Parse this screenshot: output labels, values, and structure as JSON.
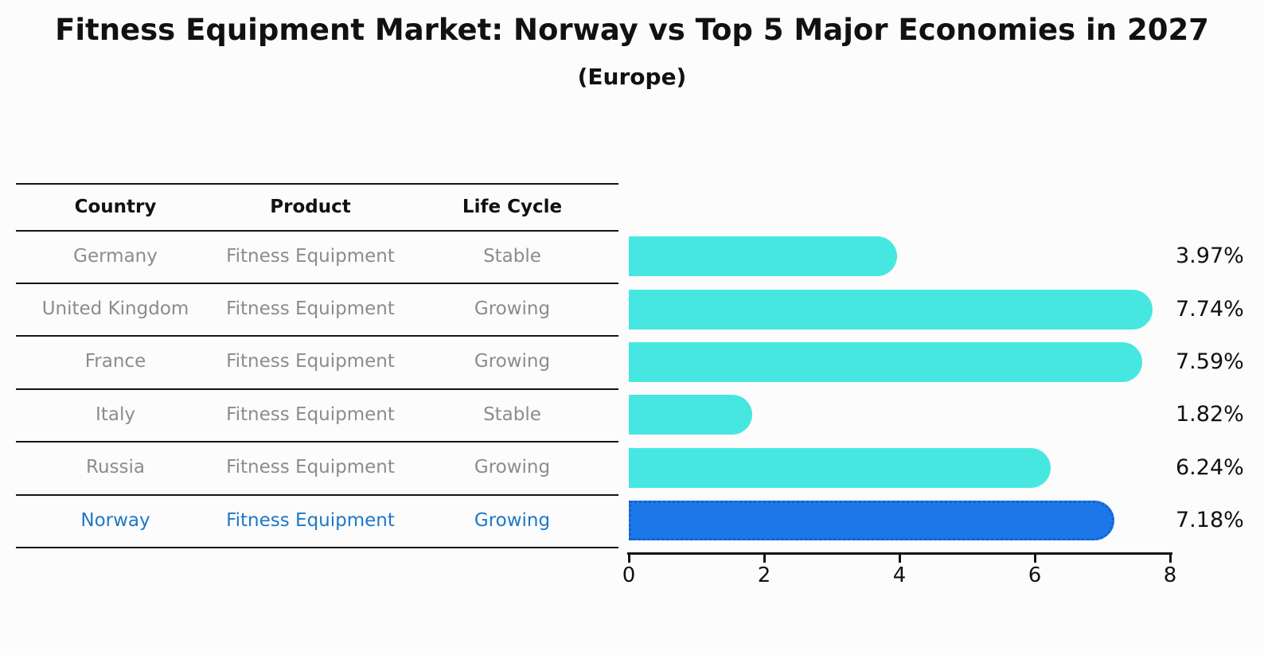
{
  "header": {
    "title": "Fitness Equipment Market: Norway vs Top 5 Major Economies in 2027",
    "subtitle": "(Europe)"
  },
  "table": {
    "headers": [
      "Country",
      "Product",
      "Life Cycle"
    ],
    "rows": [
      {
        "country": "Germany",
        "product": "Fitness Equipment",
        "life_cycle": "Stable",
        "highlight": false
      },
      {
        "country": "United Kingdom",
        "product": "Fitness Equipment",
        "life_cycle": "Growing",
        "highlight": false
      },
      {
        "country": "France",
        "product": "Fitness Equipment",
        "life_cycle": "Growing",
        "highlight": false
      },
      {
        "country": "Italy",
        "product": "Fitness Equipment",
        "life_cycle": "Stable",
        "highlight": false
      },
      {
        "country": "Russia",
        "product": "Fitness Equipment",
        "life_cycle": "Growing",
        "highlight": true
      },
      {
        "country": "Norway",
        "product": "Fitness Equipment",
        "life_cycle": "Growing",
        "highlight": true
      }
    ]
  },
  "chart_data": {
    "type": "bar",
    "orientation": "horizontal",
    "title": "Fitness Equipment Market: Norway vs Top 5 Major Economies in 2027",
    "subtitle": "(Europe)",
    "categories": [
      "Germany",
      "United Kingdom",
      "France",
      "Italy",
      "Russia",
      "Norway"
    ],
    "values": [
      3.97,
      7.74,
      7.59,
      1.82,
      6.24,
      7.18
    ],
    "value_labels": [
      "3.97%",
      "7.74%",
      "7.59%",
      "1.82%",
      "6.24%",
      "7.18%"
    ],
    "xlim": [
      0,
      8
    ],
    "xticks": [
      0,
      2,
      4,
      6,
      8
    ],
    "grid": false,
    "legend": false,
    "bar_color": "#47E7E1",
    "highlight_bar_color": "#1C77E8",
    "highlight_border_color": "#0F63D0",
    "highlight_index": 5
  },
  "colors": {
    "background": "#FCFCFC",
    "text_dark": "#111111",
    "text_muted": "#8C8C8C",
    "highlight_text": "#1E78C8",
    "line": "#151515"
  }
}
